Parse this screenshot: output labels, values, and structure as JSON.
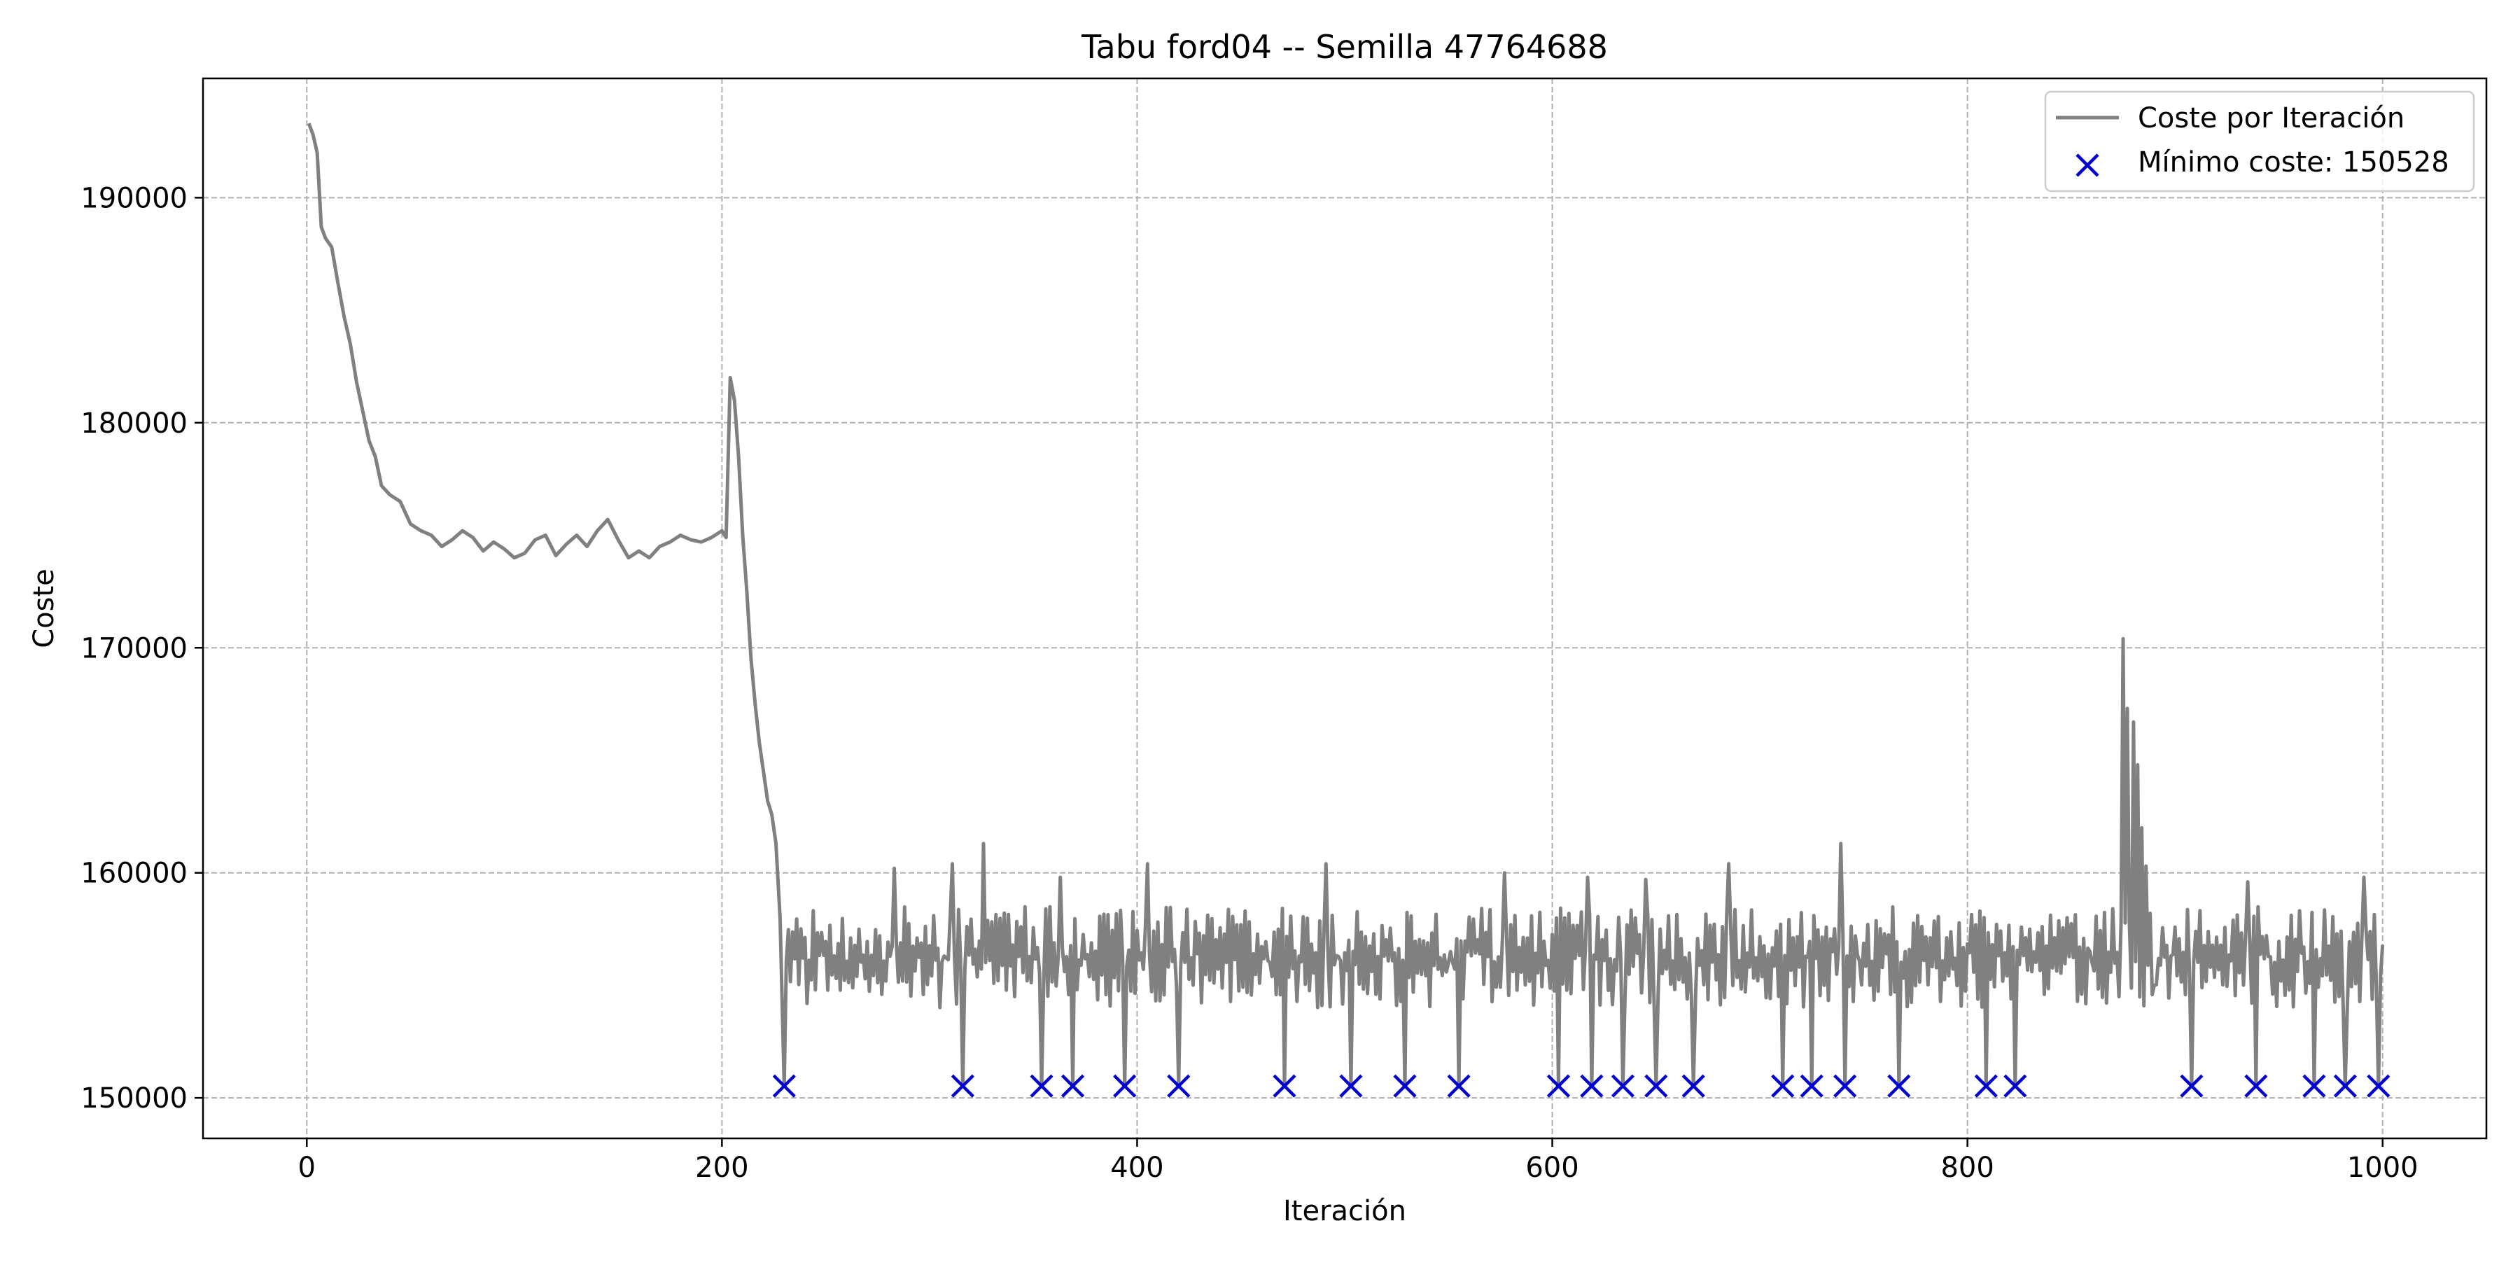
{
  "chart_data": {
    "type": "line",
    "title": "Tabu ford04 -- Semilla 47764688",
    "xlabel": "Iteración",
    "ylabel": "Coste",
    "xlim": [
      -50,
      1050
    ],
    "ylim": [
      148200,
      195300
    ],
    "xticks": [
      0,
      200,
      400,
      600,
      800,
      1000
    ],
    "yticks": [
      150000,
      160000,
      170000,
      180000,
      190000
    ],
    "grid": true,
    "legend_position": "top-right",
    "series": [
      {
        "name": "Coste por Iteración",
        "kind": "line",
        "color": "#808080",
        "phases": [
          {
            "x": [
              1,
              3,
              5,
              7,
              9,
              12,
              15,
              18,
              21,
              24,
              27,
              30,
              33,
              36,
              40,
              45,
              50,
              55,
              60,
              65,
              70,
              75,
              80,
              85,
              90,
              95,
              100,
              105,
              110,
              115,
              120,
              125,
              130,
              135,
              140,
              145,
              150,
              155,
              160,
              165,
              170,
              175,
              180,
              185,
              190,
              195,
              200,
              202
            ],
            "y": [
              193300,
              192800,
              192000,
              188700,
              188200,
              187800,
              186200,
              184700,
              183500,
              181800,
              180500,
              179200,
              178500,
              177200,
              176800,
              176500,
              175500,
              175200,
              175000,
              174500,
              174800,
              175200,
              174900,
              174300,
              174700,
              174400,
              174000,
              174200,
              174800,
              175000,
              174100,
              174600,
              175000,
              174500,
              175200,
              175700,
              174800,
              174000,
              174300,
              174000,
              174500,
              174700,
              175000,
              174800,
              174700,
              174900,
              175200,
              174900
            ]
          },
          {
            "x": [
              204,
              206,
              208,
              210,
              212,
              214,
              216,
              218,
              220,
              222,
              224,
              226,
              228,
              230
            ],
            "y": [
              182000,
              181000,
              178500,
              175000,
              172500,
              169500,
              167500,
              165800,
              164500,
              163200,
              162600,
              161300,
              158000,
              150528
            ]
          }
        ],
        "oscillation": {
          "x_range": [
            231,
            1000
          ],
          "min": 150528,
          "typical_low": 154000,
          "typical_high": 158500
        },
        "peaks": [
          {
            "x": 283,
            "y": 160200
          },
          {
            "x": 311,
            "y": 160400
          },
          {
            "x": 326,
            "y": 161300
          },
          {
            "x": 363,
            "y": 159800
          },
          {
            "x": 405,
            "y": 160400
          },
          {
            "x": 491,
            "y": 160400
          },
          {
            "x": 577,
            "y": 160000
          },
          {
            "x": 617,
            "y": 159800
          },
          {
            "x": 645,
            "y": 159700
          },
          {
            "x": 685,
            "y": 160400
          },
          {
            "x": 739,
            "y": 161300
          },
          {
            "x": 875,
            "y": 170400
          },
          {
            "x": 935,
            "y": 159600
          },
          {
            "x": 991,
            "y": 159800
          }
        ],
        "spike": {
          "x": [
            873,
            875,
            877,
            880,
            882,
            884,
            886,
            888,
            890
          ],
          "y": [
            154500,
            170400,
            167300,
            166700,
            164800,
            162000,
            160300,
            158200,
            155000
          ]
        },
        "end": {
          "x": 1000,
          "y": 156800
        }
      },
      {
        "name": "Mínimo coste: 150528",
        "kind": "scatter",
        "marker": "x",
        "color": "#0000d0",
        "x": [
          230,
          316,
          354,
          369,
          394,
          420,
          471,
          503,
          529,
          555,
          603,
          619,
          634,
          650,
          668,
          711,
          725,
          741,
          767,
          809,
          823,
          908,
          939,
          967,
          982,
          998
        ],
        "y": [
          150528,
          150528,
          150528,
          150528,
          150528,
          150528,
          150528,
          150528,
          150528,
          150528,
          150528,
          150528,
          150528,
          150528,
          150528,
          150528,
          150528,
          150528,
          150528,
          150528,
          150528,
          150528,
          150528,
          150528,
          150528,
          150528
        ]
      }
    ]
  }
}
